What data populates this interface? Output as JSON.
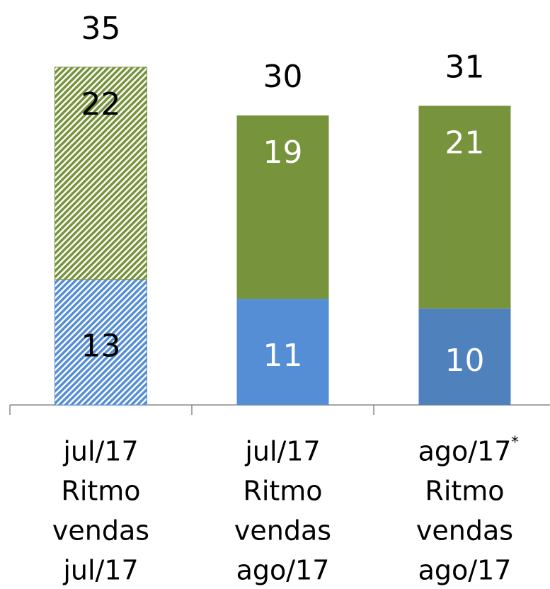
{
  "chart_data": {
    "type": "stacked_bar",
    "categories": [
      [
        "jul/17",
        "Ritmo",
        "vendas",
        "jul/17"
      ],
      [
        "jul/17",
        "Ritmo",
        "vendas",
        "ago/17"
      ],
      [
        "ago/17",
        "Ritmo",
        "vendas",
        "ago/17"
      ]
    ],
    "series": [
      {
        "colors": [
          "#558ed5",
          "#558ed5",
          "#4f81bd"
        ],
        "values": [
          13,
          11,
          10
        ]
      },
      {
        "colors": [
          "#77933c",
          "#77933c",
          "#77933c"
        ],
        "values": [
          22,
          19,
          21
        ]
      }
    ],
    "totals": [
      35,
      30,
      31
    ],
    "hatched": [
      true,
      false,
      false
    ],
    "annotations": [
      {
        "category": 2,
        "text": "*"
      }
    ]
  }
}
